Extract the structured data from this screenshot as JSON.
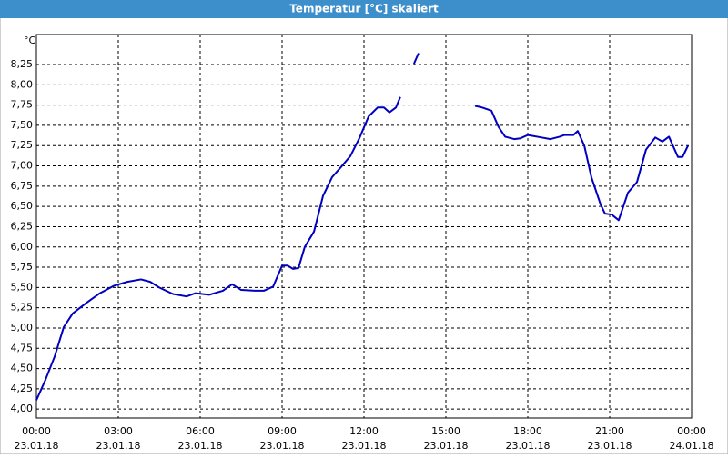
{
  "chart_data": {
    "type": "line",
    "title": "Temperatur [°C] skaliert",
    "ylabel": "°C",
    "x": [
      0,
      0.33,
      0.67,
      1,
      1.33,
      1.83,
      2.33,
      2.83,
      3.33,
      3.83,
      4.17,
      4.5,
      5,
      5.5,
      5.83,
      6.33,
      6.83,
      7.17,
      7.5,
      8,
      8.33,
      8.67,
      9,
      9.2,
      9.4,
      9.6,
      9.83,
      10.17,
      10.5,
      10.83,
      11.17,
      11.5,
      11.83,
      12.17,
      12.5,
      12.73,
      12.93,
      13.17,
      13.33,
      13.5,
      13.83,
      14,
      15,
      16.07,
      16.33,
      16.67,
      16.93,
      17.17,
      17.5,
      17.73,
      18,
      18.5,
      18.83,
      19.17,
      19.33,
      19.67,
      19.83,
      20.07,
      20.33,
      20.67,
      20.83,
      21.07,
      21.33,
      21.67,
      22,
      22.33,
      22.67,
      22.93,
      23.17,
      23.5,
      23.67,
      23.87
    ],
    "series": [
      {
        "name": "Temperatur",
        "color": "#0000c0",
        "values": [
          4.11,
          4.36,
          4.65,
          5.01,
          5.18,
          5.31,
          5.43,
          5.52,
          5.57,
          5.6,
          5.57,
          5.5,
          5.42,
          5.39,
          5.43,
          5.41,
          5.46,
          5.54,
          5.47,
          5.46,
          5.46,
          5.51,
          5.77,
          5.77,
          5.73,
          5.74,
          6.0,
          6.19,
          6.63,
          6.86,
          6.99,
          7.12,
          7.34,
          7.61,
          7.72,
          7.72,
          7.66,
          7.72,
          7.85,
          null,
          8.26,
          8.39,
          null,
          7.74,
          7.72,
          7.68,
          7.48,
          7.36,
          7.33,
          7.34,
          7.38,
          7.35,
          7.33,
          7.36,
          7.38,
          7.38,
          7.43,
          7.25,
          6.86,
          6.52,
          6.41,
          6.4,
          6.33,
          6.67,
          6.8,
          7.2,
          7.35,
          7.3,
          7.36,
          7.11,
          7.11,
          7.25
        ]
      }
    ],
    "xlim": [
      0,
      24
    ],
    "xticks": [
      {
        "value": 0,
        "label": "00:00",
        "sublabel": "23.01.18"
      },
      {
        "value": 3,
        "label": "03:00",
        "sublabel": "23.01.18"
      },
      {
        "value": 6,
        "label": "06:00",
        "sublabel": "23.01.18"
      },
      {
        "value": 9,
        "label": "09:00",
        "sublabel": "23.01.18"
      },
      {
        "value": 12,
        "label": "12:00",
        "sublabel": "23.01.18"
      },
      {
        "value": 15,
        "label": "15:00",
        "sublabel": "23.01.18"
      },
      {
        "value": 18,
        "label": "18:00",
        "sublabel": "23.01.18"
      },
      {
        "value": 21,
        "label": "21:00",
        "sublabel": "23.01.18"
      },
      {
        "value": 24,
        "label": "00:00",
        "sublabel": "24.01.18"
      }
    ],
    "ylim": [
      3.89,
      8.62
    ],
    "yticks": [
      {
        "value": 4,
        "label": "4,00"
      },
      {
        "value": 4.25,
        "label": "4,25"
      },
      {
        "value": 4.5,
        "label": "4,50"
      },
      {
        "value": 4.75,
        "label": "4,75"
      },
      {
        "value": 5,
        "label": "5,00"
      },
      {
        "value": 5.25,
        "label": "5,25"
      },
      {
        "value": 5.5,
        "label": "5,50"
      },
      {
        "value": 5.75,
        "label": "5,75"
      },
      {
        "value": 6,
        "label": "6,00"
      },
      {
        "value": 6.25,
        "label": "6,25"
      },
      {
        "value": 6.5,
        "label": "6,50"
      },
      {
        "value": 6.75,
        "label": "6,75"
      },
      {
        "value": 7,
        "label": "7,00"
      },
      {
        "value": 7.25,
        "label": "7,25"
      },
      {
        "value": 7.5,
        "label": "7,50"
      },
      {
        "value": 7.75,
        "label": "7,75"
      },
      {
        "value": 8,
        "label": "8,00"
      },
      {
        "value": 8.25,
        "label": "8,25"
      }
    ],
    "grid": true
  }
}
